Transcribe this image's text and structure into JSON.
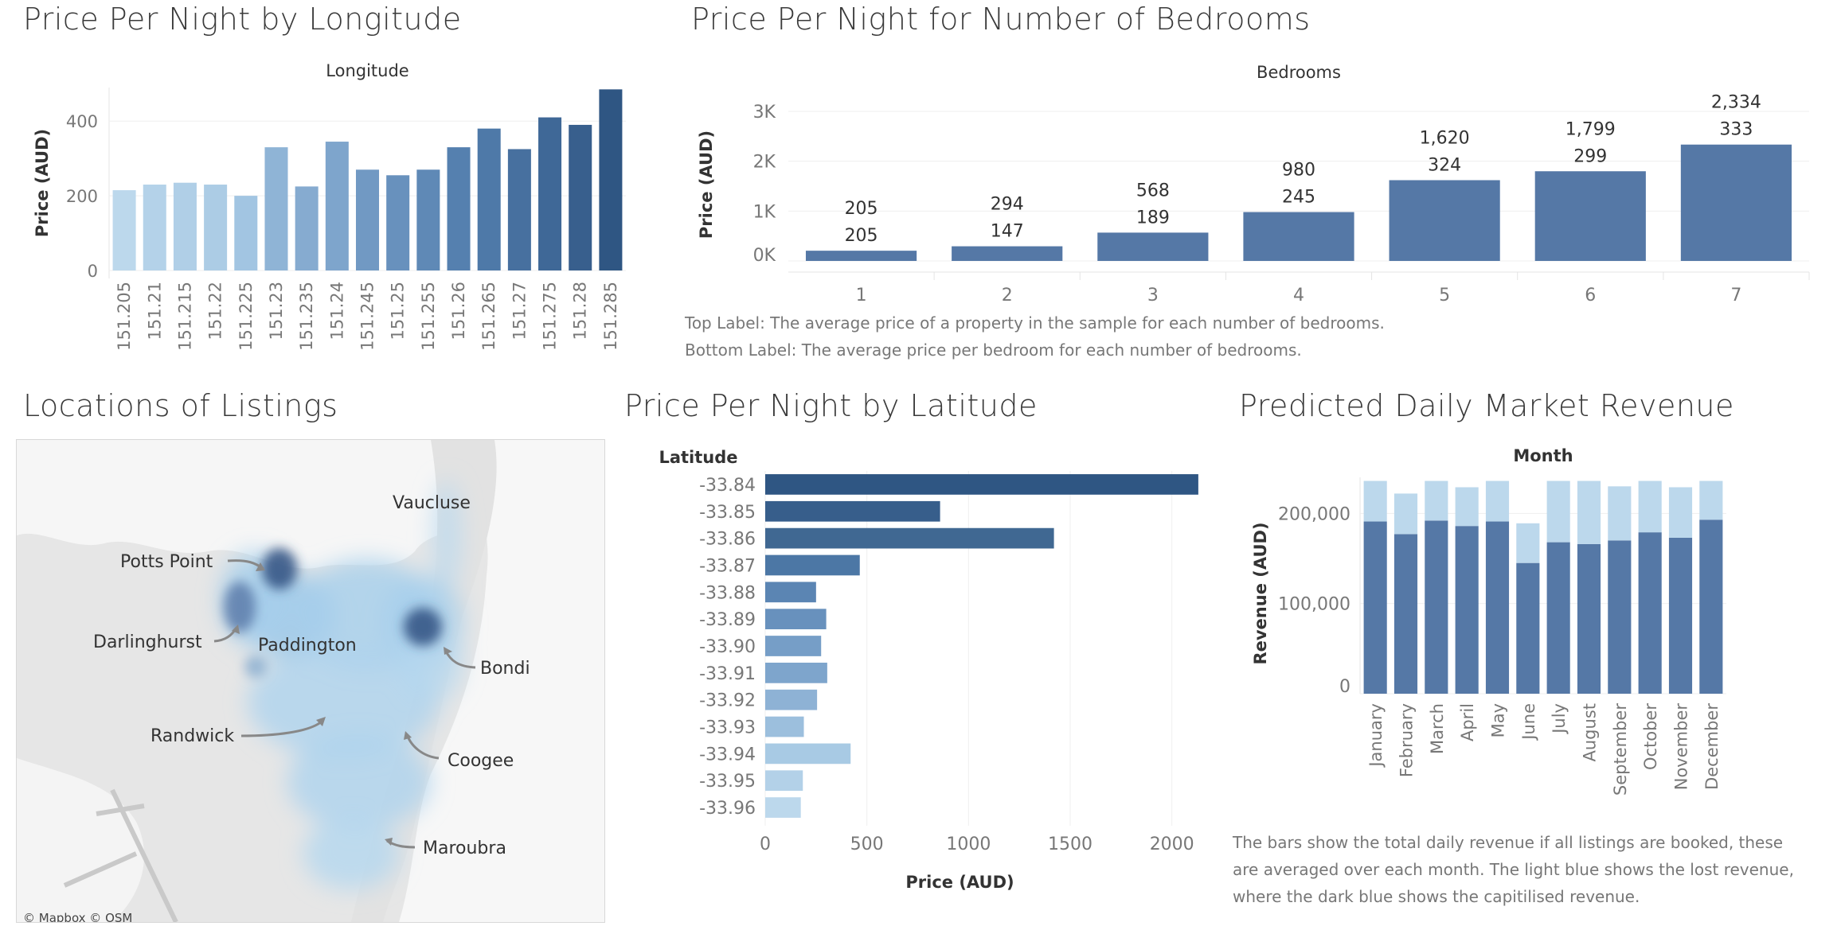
{
  "titles": {
    "longitude": "Price Per Night by Longitude",
    "bedrooms": "Price Per Night for Number of Bedrooms",
    "locations": "Locations of Listings",
    "latitude": "Price Per Night by Latitude",
    "revenue": "Predicted Daily Market Revenue"
  },
  "notes": {
    "bedrooms_top": "Top Label: The average price of a property in the sample for each number of bedrooms.",
    "bedrooms_bottom": "Bottom Label: The average price per bedroom for each number of bedrooms.",
    "revenue_1": "The bars show the total daily revenue if all listings are booked, these",
    "revenue_2": "are averaged over each month. The light blue shows the lost revenue,",
    "revenue_3": "where the dark blue shows the capitilised revenue."
  },
  "map": {
    "labels": [
      "Vaucluse",
      "Potts Point",
      "Darlinghurst",
      "Paddington",
      "Bondi",
      "Randwick",
      "Coogee",
      "Maroubra"
    ],
    "attribution": "© Mapbox  © OSM"
  },
  "chart_data": [
    {
      "type": "bar",
      "header": "Longitude",
      "ylabel": "Price (AUD)",
      "yticks": [
        "0",
        "200",
        "400"
      ],
      "ylim": [
        0,
        490
      ],
      "categories": [
        "151.205",
        "151.21",
        "151.215",
        "151.22",
        "151.225",
        "151.23",
        "151.235",
        "151.24",
        "151.245",
        "151.25",
        "151.255",
        "151.26",
        "151.265",
        "151.27",
        "151.275",
        "151.28",
        "151.285"
      ],
      "values": [
        215,
        230,
        235,
        230,
        200,
        330,
        225,
        345,
        270,
        255,
        270,
        330,
        380,
        325,
        410,
        390,
        485
      ],
      "colors": [
        "#bcd8ec",
        "#b4d2e9",
        "#b0cfe7",
        "#acccE5",
        "#a2c5e2",
        "#8fb4d6",
        "#86abd0",
        "#7ea5cc",
        "#7199c3",
        "#6891bd",
        "#5f89b6",
        "#5580af",
        "#4e79a8",
        "#47709f",
        "#3f6897",
        "#385f8d",
        "#2f5683"
      ]
    },
    {
      "type": "bar",
      "header": "Bedrooms",
      "ylabel": "Price (AUD)",
      "yticks": [
        "0K",
        "1K",
        "2K",
        "3K"
      ],
      "ylim": [
        0,
        3000
      ],
      "categories": [
        "1",
        "2",
        "3",
        "4",
        "5",
        "6",
        "7"
      ],
      "values": [
        205,
        294,
        568,
        980,
        1620,
        1799,
        2334
      ],
      "top_labels": [
        "205",
        "294",
        "568",
        "980",
        "1,620",
        "1,799",
        "2,334"
      ],
      "bottom_labels": [
        "205",
        "147",
        "189",
        "245",
        "324",
        "299",
        "333"
      ],
      "color": "#5578a6"
    },
    {
      "type": "bar",
      "orientation": "horizontal",
      "header": "Latitude",
      "xlabel": "Price (AUD)",
      "xticks": [
        "0",
        "500",
        "1000",
        "1500",
        "2000"
      ],
      "xlim": [
        0,
        2150
      ],
      "categories": [
        "-33.84",
        "-33.85",
        "-33.86",
        "-33.87",
        "-33.88",
        "-33.89",
        "-33.90",
        "-33.91",
        "-33.92",
        "-33.93",
        "-33.94",
        "-33.95",
        "-33.96"
      ],
      "values": [
        2130,
        860,
        1420,
        465,
        250,
        300,
        275,
        305,
        255,
        190,
        420,
        185,
        175
      ],
      "colors": [
        "#2f5683",
        "#375e8b",
        "#406892",
        "#4c77a5",
        "#5b85b3",
        "#6891bd",
        "#769ec7",
        "#7ea5cc",
        "#8eb2d5",
        "#9cbfdd",
        "#a8cae4",
        "#b3d1e8",
        "#bcd8ec"
      ]
    },
    {
      "type": "bar",
      "stacked": true,
      "header": "Month",
      "ylabel": "Revenue (AUD)",
      "yticks": [
        "0",
        "100,000",
        "200,000"
      ],
      "ylim": [
        0,
        240000
      ],
      "categories": [
        "January",
        "February",
        "March",
        "April",
        "May",
        "June",
        "July",
        "August",
        "September",
        "October",
        "November",
        "December"
      ],
      "series": [
        {
          "values": [
            191000,
            177000,
            192000,
            186000,
            191000,
            145000,
            168000,
            166000,
            170000,
            179000,
            173000,
            193000
          ],
          "color": "#5578a6"
        },
        {
          "values": [
            45000,
            45000,
            44000,
            43000,
            45000,
            44000,
            68000,
            70000,
            60000,
            57000,
            56000,
            43000
          ],
          "color": "#bcd8ec"
        }
      ]
    }
  ]
}
